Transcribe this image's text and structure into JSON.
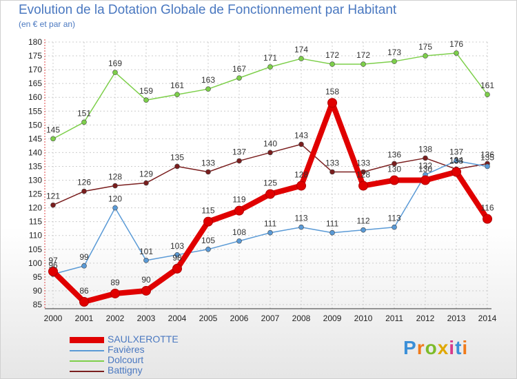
{
  "title": "Evolution de la Dotation Globale de Fonctionnement par Habitant",
  "subtitle": "(en € et par an)",
  "logo": "Proxiti",
  "colors": {
    "SAULXEROTTE": "#e00000",
    "Favières": "#5a9ad6",
    "Dolcourt": "#7dcf4a",
    "Battigny": "#7a1e1e",
    "grid": "#cccccc",
    "text_accent": "#4a78c0"
  },
  "chart_data": {
    "type": "line",
    "title": "Evolution de la Dotation Globale de Fonctionnement par Habitant",
    "subtitle": "(en € et par an)",
    "xlabel": "",
    "ylabel": "",
    "ylim": [
      85,
      180
    ],
    "yticks": [
      85,
      90,
      95,
      100,
      105,
      110,
      115,
      120,
      125,
      130,
      135,
      140,
      145,
      150,
      155,
      160,
      165,
      170,
      175,
      180
    ],
    "x": [
      "2000",
      "2001",
      "2002",
      "2003",
      "2004",
      "2005",
      "2006",
      "2007",
      "2008",
      "2009",
      "2010",
      "2011",
      "2012",
      "2013",
      "2014"
    ],
    "legend_position": "bottom-left",
    "series": [
      {
        "name": "SAULXEROTTE",
        "values": [
          97,
          86,
          89,
          90,
          98,
          115,
          119,
          125,
          128,
          158,
          128,
          130,
          130,
          133,
          116
        ]
      },
      {
        "name": "Favières",
        "values": [
          96,
          99,
          120,
          101,
          103,
          105,
          108,
          111,
          113,
          111,
          112,
          113,
          132,
          137,
          135
        ]
      },
      {
        "name": "Dolcourt",
        "values": [
          145,
          151,
          169,
          159,
          161,
          163,
          167,
          171,
          174,
          172,
          172,
          173,
          175,
          176,
          161
        ]
      },
      {
        "name": "Battigny",
        "values": [
          121,
          126,
          128,
          129,
          135,
          133,
          137,
          140,
          143,
          133,
          133,
          136,
          138,
          134,
          136
        ]
      }
    ]
  }
}
